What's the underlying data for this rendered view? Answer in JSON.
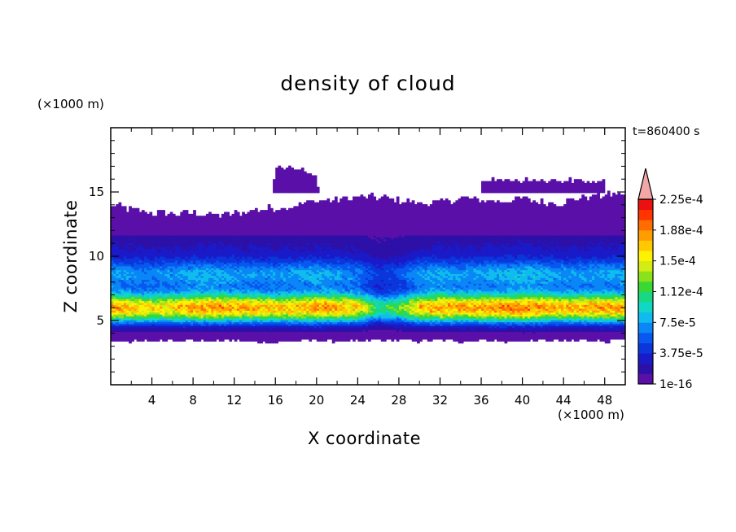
{
  "chart_data": {
    "type": "heatmap",
    "title": "density of cloud",
    "time_label": "t=860400 s",
    "xlabel": "X coordinate",
    "ylabel": "Z coordinate",
    "x_unit": "(×1000 m)",
    "y_unit": "(×1000 m)",
    "xlim": [
      0,
      50
    ],
    "ylim": [
      0,
      20
    ],
    "x_ticks": [
      4,
      8,
      12,
      16,
      20,
      24,
      28,
      32,
      36,
      40,
      44,
      48
    ],
    "y_ticks": [
      5,
      10,
      15
    ],
    "grid": false,
    "colorbar": {
      "labels": [
        "1e-16",
        "3.75e-5",
        "7.5e-5",
        "1.12e-4",
        "1.5e-4",
        "1.88e-4",
        "2.25e-4"
      ],
      "min": 0,
      "max": 0.00024,
      "extend": "max",
      "colors": [
        "#5a10a8",
        "#2c10a8",
        "#1a1ac8",
        "#0a36dc",
        "#0858f0",
        "#0a86f6",
        "#10bcee",
        "#10d8c4",
        "#18d884",
        "#3ad835",
        "#8ce21a",
        "#d2ec14",
        "#fff200",
        "#ffc800",
        "#ff9c00",
        "#ff6c00",
        "#ff3400",
        "#ec1010"
      ],
      "extend_color": "#f2a6a6"
    },
    "bands": {
      "x": [
        0,
        2,
        4,
        6,
        8,
        10,
        12,
        14,
        16,
        18,
        20,
        22,
        24,
        26,
        28,
        30,
        32,
        34,
        36,
        38,
        40,
        42,
        44,
        46,
        48,
        50
      ],
      "cloud_top_km": [
        14.0,
        13.6,
        13.4,
        13.3,
        13.4,
        13.2,
        13.3,
        13.6,
        13.8,
        14.0,
        14.3,
        14.4,
        14.6,
        14.6,
        14.4,
        14.1,
        14.2,
        14.5,
        14.4,
        14.3,
        14.5,
        14.2,
        14.2,
        14.6,
        14.8,
        14.9
      ],
      "cloud_base_km": [
        3.4,
        3.4,
        3.4,
        3.5,
        3.5,
        3.4,
        3.5,
        3.4,
        3.3,
        3.4,
        3.5,
        3.4,
        3.4,
        3.5,
        3.5,
        3.4,
        3.5,
        3.4,
        3.5,
        3.4,
        3.4,
        3.5,
        3.4,
        3.5,
        3.4,
        3.5
      ],
      "max_density": [
        0.00019,
        0.000178,
        0.00017,
        0.000175,
        0.00019,
        0.000195,
        0.000185,
        0.00018,
        0.000175,
        0.000182,
        0.000195,
        0.000185,
        0.00017,
        0.00011,
        0.00013,
        0.00018,
        0.000195,
        0.000185,
        0.000188,
        0.000195,
        0.000205,
        0.000195,
        0.00018,
        0.000185,
        0.00019,
        0.00019
      ],
      "upper_cloud_top_km": [
        0,
        0,
        0,
        0,
        0,
        0,
        0,
        0,
        17.2,
        17.2,
        16.6,
        0,
        0,
        0,
        0,
        0,
        0,
        0,
        16.2,
        16.2,
        16.1,
        16.2,
        16.2,
        16.1,
        16.0,
        0
      ]
    }
  }
}
